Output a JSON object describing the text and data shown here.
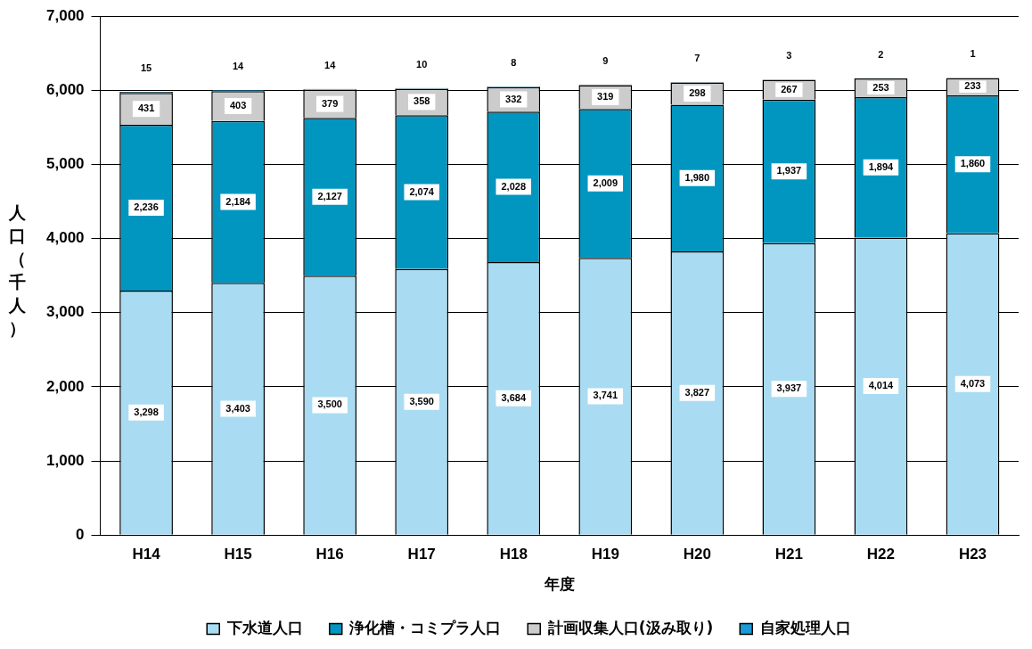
{
  "chart_data": {
    "type": "bar",
    "stacked": true,
    "xlabel": "年度",
    "ylabel": "人口（千人）",
    "categories": [
      "H14",
      "H15",
      "H16",
      "H17",
      "H18",
      "H19",
      "H20",
      "H21",
      "H22",
      "H23"
    ],
    "series": [
      {
        "name": "下水道人口",
        "color": "#a9dcf2",
        "values": [
          3298,
          3403,
          3500,
          3590,
          3684,
          3741,
          3827,
          3937,
          4014,
          4073
        ],
        "value_labels": [
          "3,298",
          "3,403",
          "3,500",
          "3,590",
          "3,684",
          "3,741",
          "3,827",
          "3,937",
          "4,014",
          "4,073"
        ]
      },
      {
        "name": "浄化槽・コミプラ人口",
        "color": "#0096c0",
        "values": [
          2236,
          2184,
          2127,
          2074,
          2028,
          2009,
          1980,
          1937,
          1894,
          1860
        ],
        "value_labels": [
          "2,236",
          "2,184",
          "2,127",
          "2,074",
          "2,028",
          "2,009",
          "1,980",
          "1,937",
          "1,894",
          "1,860"
        ]
      },
      {
        "name": "計画収集人口(汲み取り)",
        "color": "#cccccc",
        "values": [
          431,
          403,
          379,
          358,
          332,
          319,
          298,
          267,
          253,
          233
        ],
        "value_labels": [
          "431",
          "403",
          "379",
          "358",
          "332",
          "319",
          "298",
          "267",
          "253",
          "233"
        ]
      },
      {
        "name": "自家処理人口",
        "color": "#1a9ad6",
        "values": [
          15,
          14,
          14,
          10,
          8,
          9,
          7,
          3,
          2,
          1
        ],
        "value_labels": [
          "15",
          "14",
          "14",
          "10",
          "8",
          "9",
          "7",
          "3",
          "2",
          "1"
        ]
      }
    ],
    "ylim": [
      0,
      7000
    ],
    "yticks": [
      {
        "value": 0,
        "label": "0"
      },
      {
        "value": 1000,
        "label": "1,000"
      },
      {
        "value": 2000,
        "label": "2,000"
      },
      {
        "value": 3000,
        "label": "3,000"
      },
      {
        "value": 4000,
        "label": "4,000"
      },
      {
        "value": 5000,
        "label": "5,000"
      },
      {
        "value": 6000,
        "label": "6,000"
      },
      {
        "value": 7000,
        "label": "7,000"
      }
    ],
    "grid": "y",
    "legend": "bottom"
  }
}
